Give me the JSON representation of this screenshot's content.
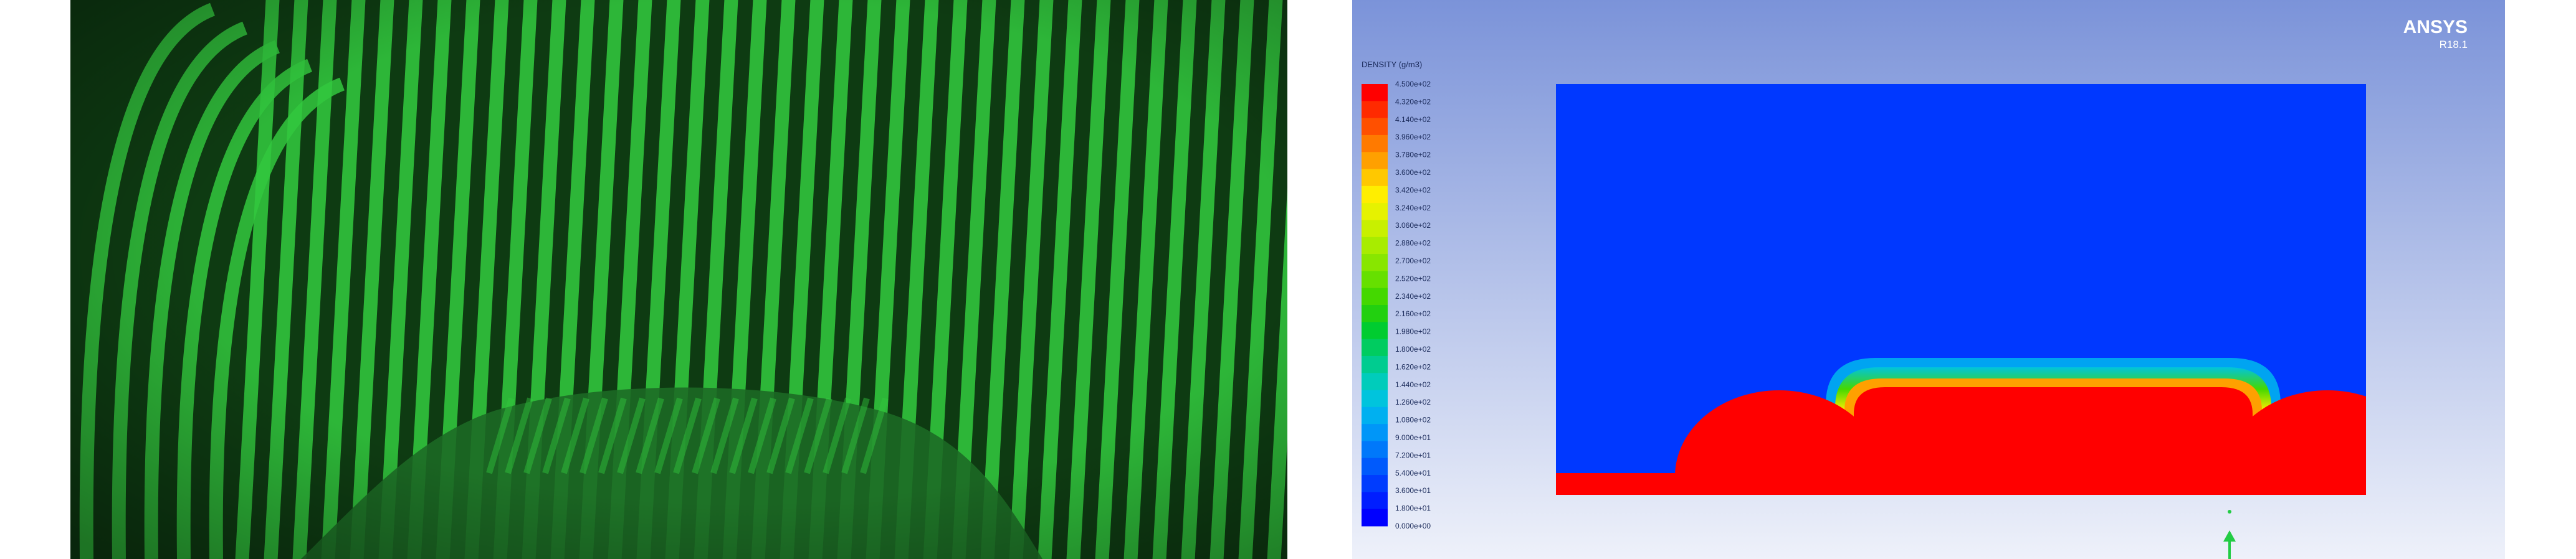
{
  "fringe_image": {
    "colors": {
      "background": "#0e3b12",
      "fringe": "#32c83e",
      "shadow": "#1d6a24"
    }
  },
  "cfd_image": {
    "logo": {
      "brand": "ANSYS",
      "version": "R18.1"
    },
    "legend": {
      "title": "DENSITY (g/m3)",
      "labels": [
        "4.500e+02",
        "4.320e+02",
        "4.140e+02",
        "3.960e+02",
        "3.780e+02",
        "3.600e+02",
        "3.420e+02",
        "3.240e+02",
        "3.060e+02",
        "2.880e+02",
        "2.700e+02",
        "2.520e+02",
        "2.340e+02",
        "2.160e+02",
        "1.980e+02",
        "1.800e+02",
        "1.620e+02",
        "1.440e+02",
        "1.260e+02",
        "1.080e+02",
        "9.000e+01",
        "7.200e+01",
        "5.400e+01",
        "3.600e+01",
        "1.800e+01",
        "0.000e+00"
      ],
      "colors": [
        "#ff0000",
        "#ff2a00",
        "#ff5000",
        "#ff7a00",
        "#ffa000",
        "#ffc800",
        "#ffee00",
        "#e6f200",
        "#c8f000",
        "#a8ec00",
        "#88e600",
        "#66e000",
        "#44d800",
        "#22d010",
        "#00cc30",
        "#00cc60",
        "#00cc90",
        "#00ccbb",
        "#00c4dd",
        "#00b0f0",
        "#0096f8",
        "#0078fa",
        "#005afc",
        "#003cfe",
        "#001eff",
        "#0000ff"
      ]
    },
    "colors": {
      "background_top": "#7b93d9",
      "background_bottom": "#eef1fa",
      "field_low": "#0038ff",
      "field_high": "#ff0000",
      "axis_triad": "#22cc44"
    }
  }
}
